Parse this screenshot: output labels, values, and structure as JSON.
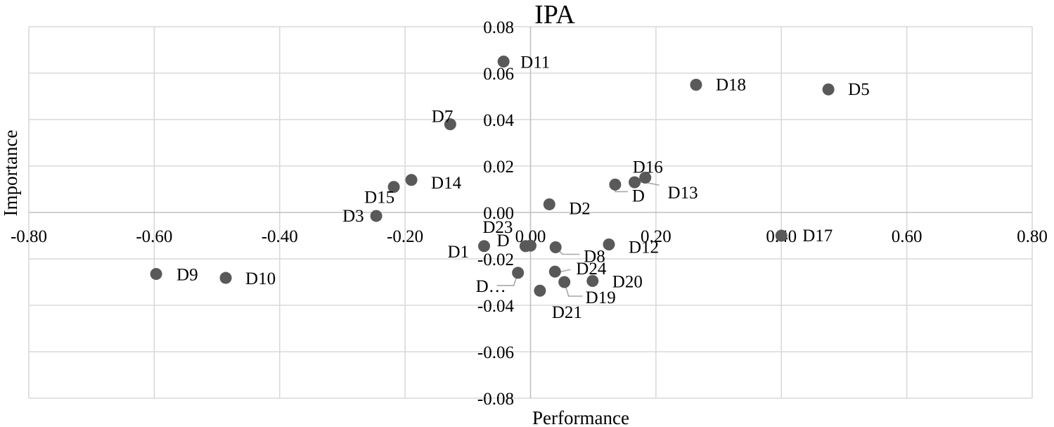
{
  "chart_data": {
    "type": "scatter",
    "title": "IPA",
    "xlabel": "Performance",
    "ylabel": "Importance",
    "xlim": [
      -0.8,
      0.8
    ],
    "ylim": [
      -0.08,
      0.08
    ],
    "x_ticks": [
      "-0.80",
      "-0.60",
      "-0.40",
      "-0.20",
      "0.00",
      "0.20",
      "0.40",
      "0.60",
      "0.80"
    ],
    "y_ticks": [
      "0.08",
      "0.06",
      "0.04",
      "0.02",
      "0.00",
      "-0.02",
      "-0.04",
      "-0.06",
      "-0.08"
    ],
    "grid": true,
    "marker_color": "#595959",
    "points": [
      {
        "label": "D11",
        "x": -0.043,
        "y": 0.065
      },
      {
        "label": "D18",
        "x": 0.264,
        "y": 0.055
      },
      {
        "label": "D5",
        "x": 0.475,
        "y": 0.053
      },
      {
        "label": "D7",
        "x": -0.128,
        "y": 0.038
      },
      {
        "label": "D16",
        "x": 0.183,
        "y": 0.015
      },
      {
        "label": "D13",
        "x": 0.166,
        "y": 0.013
      },
      {
        "label": "D",
        "x": 0.135,
        "y": 0.012
      },
      {
        "label": "D14",
        "x": -0.19,
        "y": 0.014
      },
      {
        "label": "D15",
        "x": -0.218,
        "y": 0.011
      },
      {
        "label": "D2",
        "x": 0.03,
        "y": 0.0035
      },
      {
        "label": "D3",
        "x": -0.246,
        "y": -0.0015
      },
      {
        "label": "D17",
        "x": 0.4,
        "y": -0.01
      },
      {
        "label": "D12",
        "x": 0.125,
        "y": -0.0138
      },
      {
        "label": "D23",
        "x": -0.008,
        "y": -0.0145
      },
      {
        "label": "D",
        "x": 0.0,
        "y": -0.0143
      },
      {
        "label": "D1",
        "x": -0.074,
        "y": -0.0145
      },
      {
        "label": "D8",
        "x": 0.04,
        "y": -0.015
      },
      {
        "label": "D24",
        "x": 0.039,
        "y": -0.0255
      },
      {
        "label": "D…",
        "x": -0.02,
        "y": -0.026
      },
      {
        "label": "D20",
        "x": 0.099,
        "y": -0.0295
      },
      {
        "label": "D19",
        "x": 0.054,
        "y": -0.03
      },
      {
        "label": "D21",
        "x": 0.015,
        "y": -0.0337
      },
      {
        "label": "D9",
        "x": -0.597,
        "y": -0.0265
      },
      {
        "label": "D10",
        "x": -0.486,
        "y": -0.0282
      }
    ]
  }
}
